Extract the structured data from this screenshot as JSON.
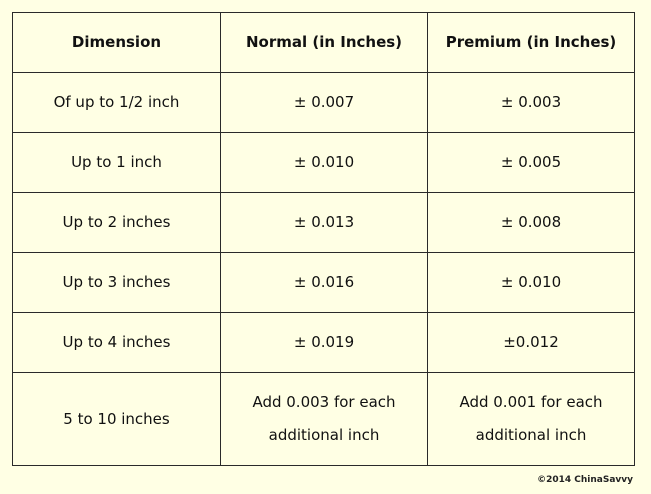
{
  "table": {
    "headers": [
      "Dimension",
      "Normal (in Inches)",
      "Premium (in Inches)"
    ],
    "rows": [
      {
        "dimension": "Of up to 1/2 inch",
        "normal": "± 0.007",
        "premium": "± 0.003"
      },
      {
        "dimension": "Up to 1 inch",
        "normal": "± 0.010",
        "premium": "± 0.005"
      },
      {
        "dimension": "Up to 2 inches",
        "normal": "± 0.013",
        "premium": "± 0.008"
      },
      {
        "dimension": "Up to 3 inches",
        "normal": "± 0.016",
        "premium": "± 0.010"
      },
      {
        "dimension": "Up to 4 inches",
        "normal": "± 0.019",
        "premium": "±0.012"
      },
      {
        "dimension": "5 to 10 inches",
        "normal_lines": [
          "Add 0.003 for each",
          "additional inch"
        ],
        "premium_lines": [
          "Add 0.001 for each",
          "additional inch"
        ]
      }
    ]
  },
  "watermark": "©2014 ChinaSavvy",
  "colors": {
    "background": "#FFFFE4",
    "border": "#2a2a2a",
    "text": "#111111"
  }
}
